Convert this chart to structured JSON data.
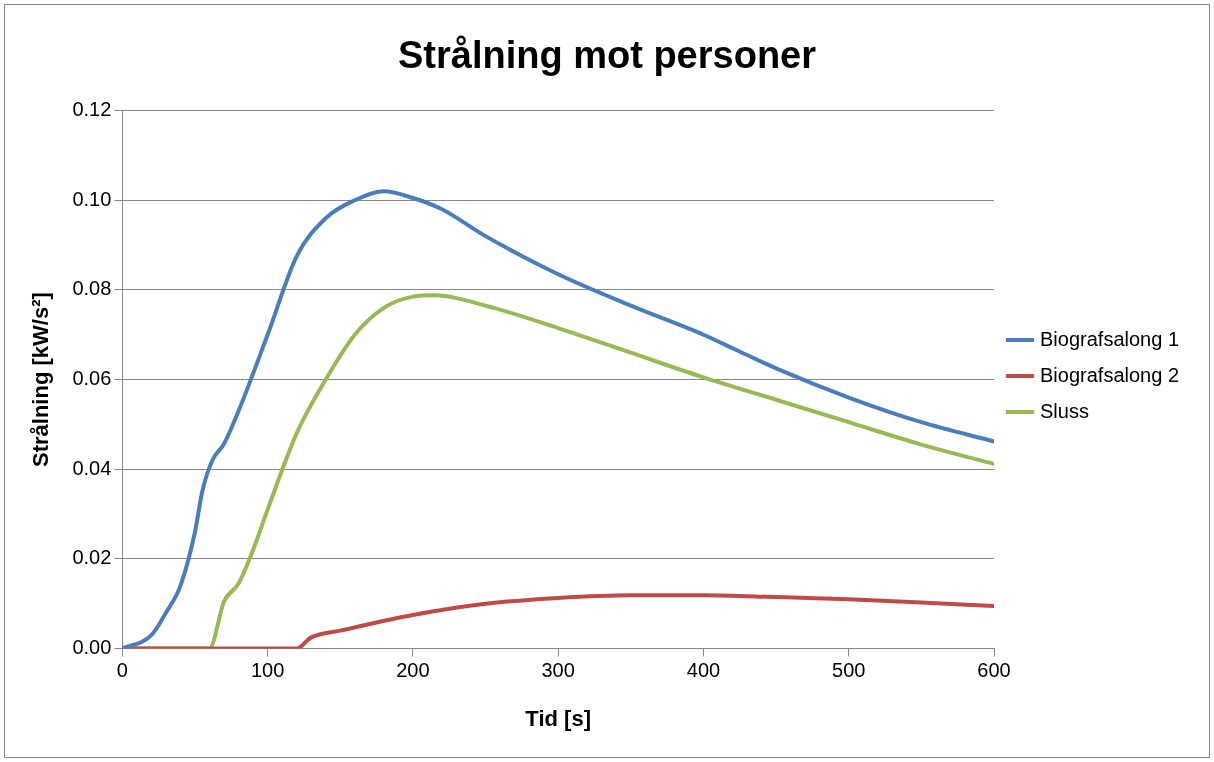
{
  "chart_data": {
    "type": "line",
    "title": "Strålning mot personer",
    "xlabel": "Tid [s]",
    "ylabel": "Strålning [kW/s²]",
    "xlim": [
      0,
      600
    ],
    "xticks": [
      0,
      100,
      200,
      300,
      400,
      500,
      600
    ],
    "ylim": [
      0,
      0.12
    ],
    "yticks": [
      {
        "value": 0,
        "label": "0.00"
      },
      {
        "value": 0.02,
        "label": "0.02"
      },
      {
        "value": 0.04,
        "label": "0.04"
      },
      {
        "value": 0.06,
        "label": "0.06"
      },
      {
        "value": 0.08,
        "label": "0.08"
      },
      {
        "value": 0.1,
        "label": "0.10"
      },
      {
        "value": 0.12,
        "label": "0.12"
      }
    ],
    "grid": "y",
    "legend": "right",
    "marker": "none",
    "line_style": "solid",
    "series": [
      {
        "name": "Biografsalong 1",
        "color": "#4a7ebb",
        "x": [
          0,
          20,
          30,
          40,
          50,
          55,
          62,
          70,
          80,
          100,
          120,
          140,
          160,
          180,
          200,
          220,
          250,
          300,
          350,
          400,
          420,
          450,
          500,
          550,
          600
        ],
        "values": [
          0,
          0.003,
          0.008,
          0.014,
          0.026,
          0.035,
          0.042,
          0.0457,
          0.053,
          0.07,
          0.0875,
          0.096,
          0.1,
          0.102,
          0.1005,
          0.098,
          0.092,
          0.0835,
          0.0765,
          0.07,
          0.067,
          0.0625,
          0.056,
          0.0505,
          0.0462
        ]
      },
      {
        "name": "Biografsalong 2",
        "color": "#be4b48",
        "x": [
          0,
          60,
          120,
          130,
          150,
          200,
          250,
          300,
          350,
          400,
          450,
          500,
          550,
          600
        ],
        "values": [
          0,
          0,
          0,
          0.0025,
          0.004,
          0.0075,
          0.01,
          0.0113,
          0.0119,
          0.0119,
          0.0115,
          0.011,
          0.0103,
          0.0095
        ]
      },
      {
        "name": "Sluss",
        "color": "#98b954",
        "x": [
          0,
          60,
          70,
          80,
          90,
          100,
          120,
          140,
          160,
          180,
          200,
          215,
          250,
          300,
          350,
          400,
          450,
          500,
          550,
          600
        ],
        "values": [
          0,
          0,
          0.0105,
          0.0145,
          0.022,
          0.031,
          0.048,
          0.06,
          0.07,
          0.076,
          0.0785,
          0.0788,
          0.0765,
          0.0715,
          0.066,
          0.0605,
          0.0555,
          0.0505,
          0.0455,
          0.0412
        ]
      }
    ]
  }
}
